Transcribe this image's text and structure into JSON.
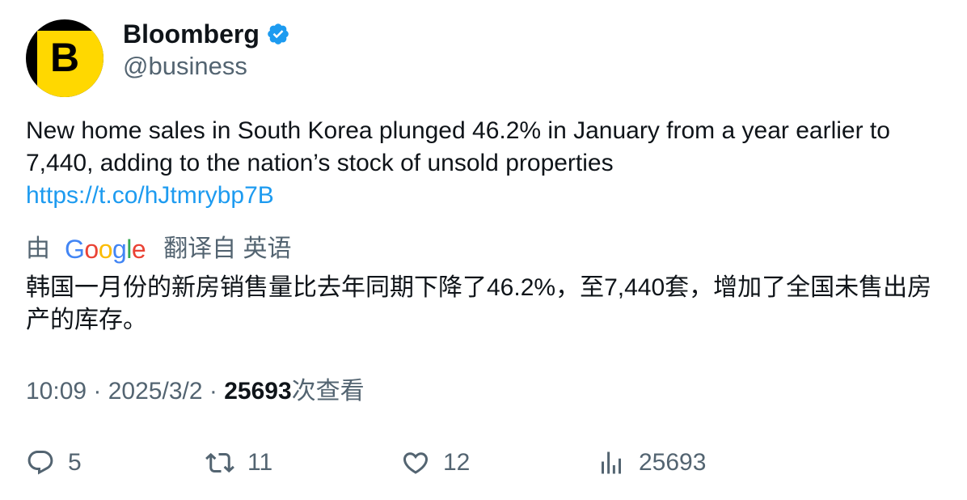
{
  "author": {
    "name": "Bloomberg",
    "handle": "@business",
    "avatar_letter": "B",
    "verified": true,
    "brand_colors": {
      "avatar_bg": "#000000",
      "avatar_fg": "#ffd800",
      "verified": "#1d9bf0"
    }
  },
  "tweet": {
    "text": "New home sales in South Korea plunged 46.2% in January from a year earlier to 7,440, adding to the nation’s stock of unsold properties",
    "link": "https://t.co/hJtmrybp7B"
  },
  "translation": {
    "prefix": "由",
    "provider_letters": [
      "G",
      "o",
      "o",
      "g",
      "l",
      "e"
    ],
    "suffix": "翻译自 英语",
    "text": "韩国一月份的新房销售量比去年同期下降了46.2%，至7,440套，增加了全国未售出房产的库存。"
  },
  "meta": {
    "time": "10:09",
    "separator": " · ",
    "date": "2025/3/2",
    "views_count": "25693",
    "views_label": "次查看"
  },
  "actions": {
    "replies": {
      "icon": "reply-icon",
      "count": "5"
    },
    "retweets": {
      "icon": "retweet-icon",
      "count": "11"
    },
    "likes": {
      "icon": "heart-icon",
      "count": "12"
    },
    "views": {
      "icon": "analytics-icon",
      "count": "25693"
    }
  },
  "colors": {
    "link": "#1d9bf0",
    "secondary_text": "#536471",
    "primary_text": "#0f1419"
  }
}
